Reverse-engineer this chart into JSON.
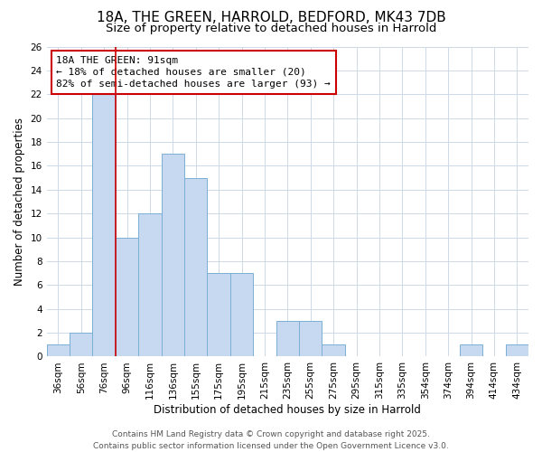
{
  "title": "18A, THE GREEN, HARROLD, BEDFORD, MK43 7DB",
  "subtitle": "Size of property relative to detached houses in Harrold",
  "xlabel": "Distribution of detached houses by size in Harrold",
  "ylabel": "Number of detached properties",
  "bin_labels": [
    "36sqm",
    "56sqm",
    "76sqm",
    "96sqm",
    "116sqm",
    "136sqm",
    "155sqm",
    "175sqm",
    "195sqm",
    "215sqm",
    "235sqm",
    "255sqm",
    "275sqm",
    "295sqm",
    "315sqm",
    "335sqm",
    "354sqm",
    "374sqm",
    "394sqm",
    "414sqm",
    "434sqm"
  ],
  "bin_counts": [
    1,
    2,
    22,
    10,
    12,
    17,
    15,
    7,
    7,
    0,
    3,
    3,
    1,
    0,
    0,
    0,
    0,
    0,
    1,
    0,
    1
  ],
  "bar_color": "#c6d9f0",
  "bar_edge_color": "#7bafd4",
  "vline_color": "#cc0000",
  "vline_x": 2.5,
  "annotation_text": "18A THE GREEN: 91sqm\n← 18% of detached houses are smaller (20)\n82% of semi-detached houses are larger (93) →",
  "annotation_box_color": "#ffffff",
  "annotation_box_edge_color": "#cc0000",
  "ylim": [
    0,
    26
  ],
  "yticks": [
    0,
    2,
    4,
    6,
    8,
    10,
    12,
    14,
    16,
    18,
    20,
    22,
    24,
    26
  ],
  "background_color": "#ffffff",
  "grid_color": "#cdd9e5",
  "footer_line1": "Contains HM Land Registry data © Crown copyright and database right 2025.",
  "footer_line2": "Contains public sector information licensed under the Open Government Licence v3.0.",
  "title_fontsize": 11,
  "subtitle_fontsize": 9.5,
  "axis_label_fontsize": 8.5,
  "tick_fontsize": 7.5,
  "annotation_fontsize": 8,
  "footer_fontsize": 6.5
}
